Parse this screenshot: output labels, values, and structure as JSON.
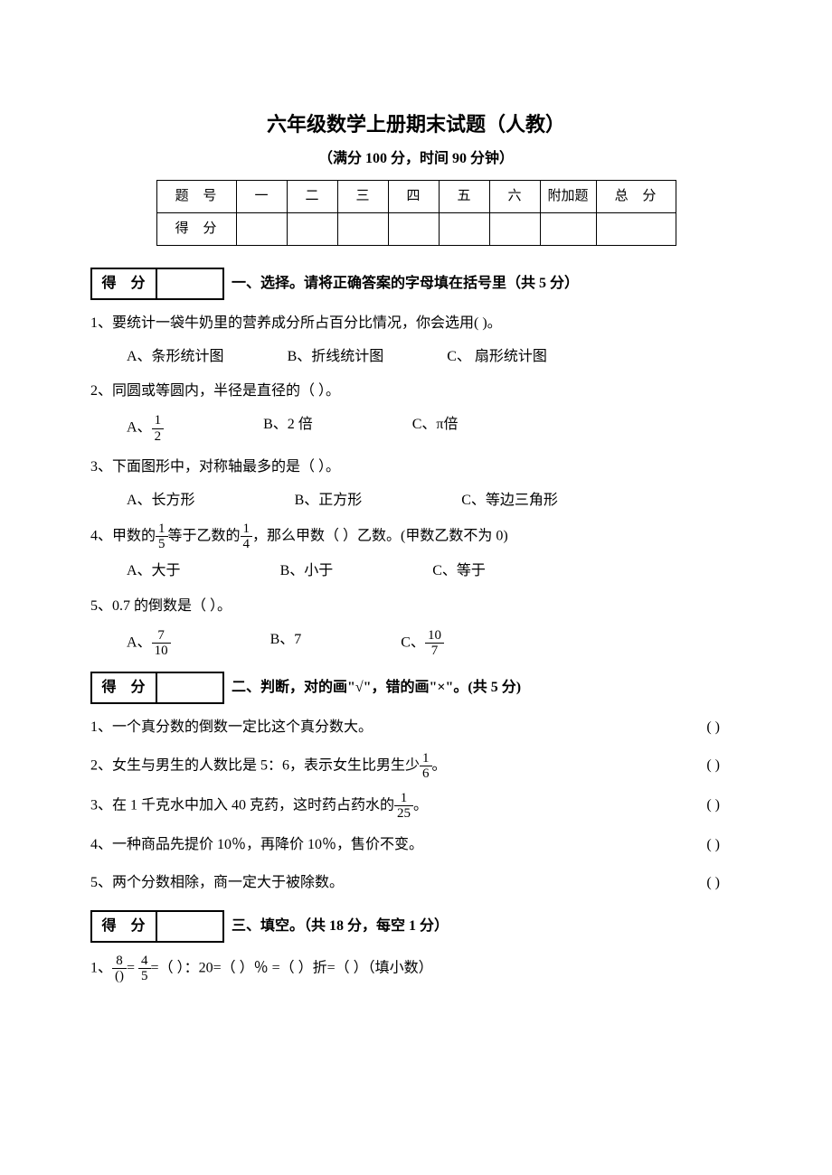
{
  "title": "六年级数学上册期末试题（人教）",
  "subtitle": "（满分 100 分，时间 90 分钟）",
  "score_table": {
    "row1_label": "题  号",
    "row2_label": "得  分",
    "cols": [
      "一",
      "二",
      "三",
      "四",
      "五",
      "六",
      "附加题",
      "总  分"
    ]
  },
  "tiny_score_label": "得 分",
  "section1": {
    "title": "一、选择。请将正确答案的字母填在括号里（共 5 分）",
    "q1": {
      "text": "1、要统计一袋牛奶里的营养成分所占百分比情况，你会选用(         )。",
      "a": "A、条形统计图",
      "b": "B、折线统计图",
      "c": "C、 扇形统计图"
    },
    "q2": {
      "text": "2、同圆或等圆内，半径是直径的（        ）。",
      "a_prefix": "A、",
      "a_num": "1",
      "a_den": "2",
      "b": "B、2 倍",
      "c": "C、π倍"
    },
    "q3": {
      "text": "3、下面图形中，对称轴最多的是（         ）。",
      "a": "A、长方形",
      "b": "B、正方形",
      "c": "C、等边三角形"
    },
    "q4": {
      "pre": "4、甲数的",
      "f1_num": "1",
      "f1_den": "5",
      "mid": "等于乙数的",
      "f2_num": "1",
      "f2_den": "4",
      "post": "，那么甲数（        ）乙数。(甲数乙数不为 0)",
      "a": "A、大于",
      "b": "B、小于",
      "c": "C、等于"
    },
    "q5": {
      "text": "5、0.7 的倒数是（         ）。",
      "a_prefix": "A、",
      "a_num": "7",
      "a_den": "10",
      "b": "B、7",
      "c_prefix": "C、",
      "c_num": "10",
      "c_den": "7"
    }
  },
  "section2": {
    "title": "二、判断，对的画\"√\"，错的画\"×\"。(共 5 分)",
    "q1": "1、一个真分数的倒数一定比这个真分数大。",
    "q2_pre": "2、女生与男生的人数比是 5：6，表示女生比男生少",
    "q2_num": "1",
    "q2_den": "6",
    "q2_post": "。",
    "q3_pre": "3、在 1 千克水中加入 40 克药，这时药占药水的",
    "q3_num": "1",
    "q3_den": "25",
    "q3_post": "。",
    "q4": "4、一种商品先提价 10％，再降价 10％，售价不变。",
    "q5": "5、两个分数相除，商一定大于被除数。",
    "paren": "(          )"
  },
  "section3": {
    "title": "三、填空。（共 18 分，每空 1 分）",
    "q1_pre": "1、",
    "f1_num": "8",
    "f1_den": "()",
    "eq": "=",
    "f2_num": "4",
    "f2_den": "5",
    "rest": "=（     ）：20=（    ）％ =（        ）折=（        ）（填小数）"
  }
}
